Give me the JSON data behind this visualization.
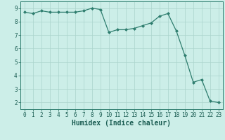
{
  "x": [
    0,
    1,
    2,
    3,
    4,
    5,
    6,
    7,
    8,
    9,
    10,
    11,
    12,
    13,
    14,
    15,
    16,
    17,
    18,
    19,
    20,
    21,
    22,
    23
  ],
  "y": [
    8.7,
    8.6,
    8.8,
    8.7,
    8.7,
    8.7,
    8.7,
    8.8,
    9.0,
    8.9,
    7.2,
    7.4,
    7.4,
    7.5,
    7.7,
    7.9,
    8.4,
    8.6,
    7.3,
    5.5,
    3.5,
    3.7,
    2.1,
    2.0
  ],
  "line_color": "#2e7d6e",
  "marker": "D",
  "marker_size": 2,
  "bg_color": "#cceee8",
  "grid_color": "#aad4cc",
  "xlabel": "Humidex (Indice chaleur)",
  "ylim": [
    1.5,
    9.5
  ],
  "xlim": [
    -0.5,
    23.5
  ],
  "yticks": [
    2,
    3,
    4,
    5,
    6,
    7,
    8,
    9
  ],
  "xticks": [
    0,
    1,
    2,
    3,
    4,
    5,
    6,
    7,
    8,
    9,
    10,
    11,
    12,
    13,
    14,
    15,
    16,
    17,
    18,
    19,
    20,
    21,
    22,
    23
  ],
  "tick_fontsize": 5.5,
  "xlabel_fontsize": 7,
  "spine_color": "#2e7d6e",
  "tick_color": "#1a5c52"
}
